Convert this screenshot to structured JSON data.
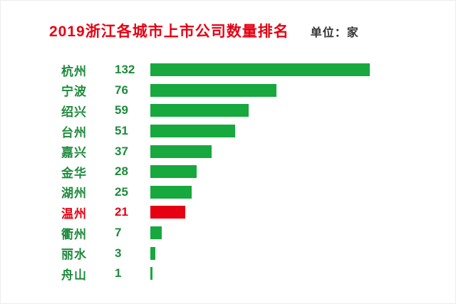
{
  "header": {
    "title": "2019浙江各城市上市公司数量排名",
    "unit_label": "单位：家"
  },
  "colors": {
    "title_red": "#e60012",
    "bar_green": "#17a83e",
    "label_green": "#1e8a3c",
    "highlight_red": "#e60012",
    "unit_text": "#333333",
    "background": "#ffffff"
  },
  "chart_data": {
    "type": "bar",
    "orientation": "horizontal",
    "title": "2019浙江各城市上市公司数量排名",
    "unit": "单位：家",
    "categories": [
      "杭州",
      "宁波",
      "绍兴",
      "台州",
      "嘉兴",
      "金华",
      "湖州",
      "温州",
      "衢州",
      "丽水",
      "舟山"
    ],
    "values": [
      132,
      76,
      59,
      51,
      37,
      28,
      25,
      21,
      7,
      3,
      1
    ],
    "highlight_category": "温州",
    "highlight_index": 7,
    "max_value": 132,
    "xlim": [
      0,
      140
    ],
    "grid": false,
    "legend": false,
    "data_labels": "left-of-bar"
  }
}
